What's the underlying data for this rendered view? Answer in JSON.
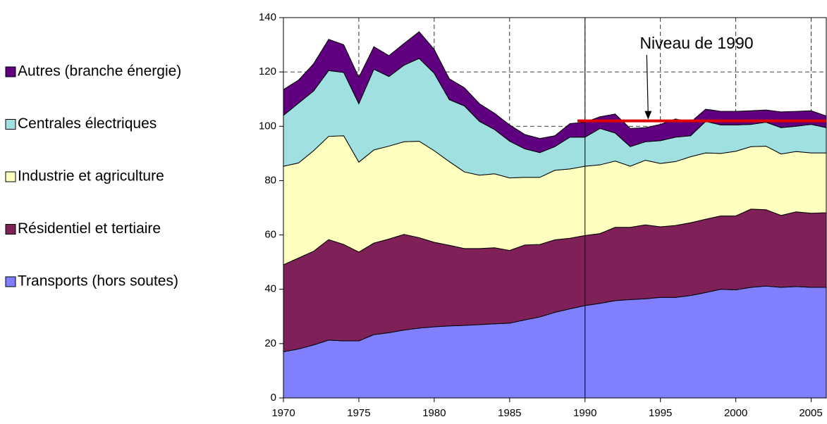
{
  "chart_data": {
    "type": "stacked-area",
    "x": [
      1970,
      1971,
      1972,
      1973,
      1974,
      1975,
      1976,
      1977,
      1978,
      1979,
      1980,
      1981,
      1982,
      1983,
      1984,
      1985,
      1986,
      1987,
      1988,
      1989,
      1990,
      1991,
      1992,
      1993,
      1994,
      1995,
      1996,
      1997,
      1998,
      1999,
      2000,
      2001,
      2002,
      2003,
      2004,
      2005,
      2006
    ],
    "series": [
      {
        "name": "Transports (hors soutes)",
        "color": "#8080ff",
        "values": [
          17,
          18,
          19.5,
          21.3,
          21,
          21,
          23.3,
          24,
          25,
          25.7,
          26.2,
          26.5,
          26.7,
          27,
          27.3,
          27.5,
          28.7,
          29.8,
          31.5,
          32.8,
          34,
          34.8,
          35.8,
          36.2,
          36.5,
          37,
          37,
          37.7,
          38.8,
          40,
          39.8,
          40.7,
          41.2,
          40.7,
          41,
          40.7,
          40.7
        ]
      },
      {
        "name": "Résidentiel et tertiaire",
        "color": "#7f2059",
        "values": [
          32,
          33.5,
          34.5,
          37,
          35.5,
          32.7,
          33.7,
          34.5,
          35.2,
          33.3,
          31.1,
          29.7,
          28.3,
          28,
          28,
          26.8,
          27.6,
          26.7,
          26.7,
          26,
          25.8,
          25.7,
          27,
          26.6,
          27.2,
          26,
          26.5,
          26.8,
          27,
          27,
          27.2,
          28.8,
          28.1,
          26.5,
          27.5,
          27.3,
          27.5
        ]
      },
      {
        "name": "Industrie et agriculture",
        "color": "#ffffc0",
        "values": [
          36.3,
          35,
          37,
          38,
          40,
          33.1,
          34.3,
          34.2,
          34.1,
          35.5,
          33.7,
          30.8,
          28.2,
          27,
          27.2,
          26.7,
          24.9,
          24.7,
          25.6,
          25.5,
          25.5,
          25.3,
          24.4,
          22.5,
          23.8,
          23.3,
          23.5,
          24.3,
          24.4,
          23,
          23.8,
          23,
          23.4,
          22.6,
          22.2,
          22.2,
          22
        ]
      },
      {
        "name": "Centrales électriques",
        "color": "#a0e0e0",
        "values": [
          18.7,
          22,
          22,
          24.2,
          23.3,
          21.5,
          29.7,
          25.6,
          28.2,
          30.5,
          28.5,
          22.8,
          24.3,
          19.8,
          16.3,
          13.5,
          10.5,
          9.1,
          8.7,
          11.7,
          10.7,
          13.4,
          10.3,
          7.2,
          6.8,
          8.4,
          9,
          7.7,
          11.6,
          10.5,
          9.7,
          8.2,
          8.8,
          9.7,
          9.3,
          10.5,
          9.3
        ]
      },
      {
        "name": "Autres (branche énergie)",
        "color": "#600080",
        "values": [
          9.5,
          8.5,
          10,
          11.5,
          10.2,
          9.7,
          8.3,
          7.7,
          8,
          9.8,
          8.8,
          7.7,
          6.7,
          6.5,
          6,
          6,
          5.3,
          5.2,
          4,
          5,
          5.5,
          4.3,
          7,
          6.7,
          5.2,
          6,
          6.7,
          5,
          4.5,
          5,
          5,
          5,
          4.5,
          5.8,
          5.5,
          5,
          4.3
        ]
      }
    ],
    "xlim": [
      1970,
      2006
    ],
    "xticks": [
      1970,
      1975,
      1980,
      1985,
      1990,
      1995,
      2000,
      2005
    ],
    "ylim": [
      0,
      140
    ],
    "yticks": [
      0,
      20,
      40,
      60,
      80,
      100,
      120,
      140
    ],
    "grid": true,
    "reference_line": {
      "value": 102,
      "x": [
        1989.5,
        2006
      ],
      "color": "#e00000"
    },
    "annotation": {
      "text": "Niveau de 1990",
      "x": 1994,
      "y": 102
    }
  }
}
